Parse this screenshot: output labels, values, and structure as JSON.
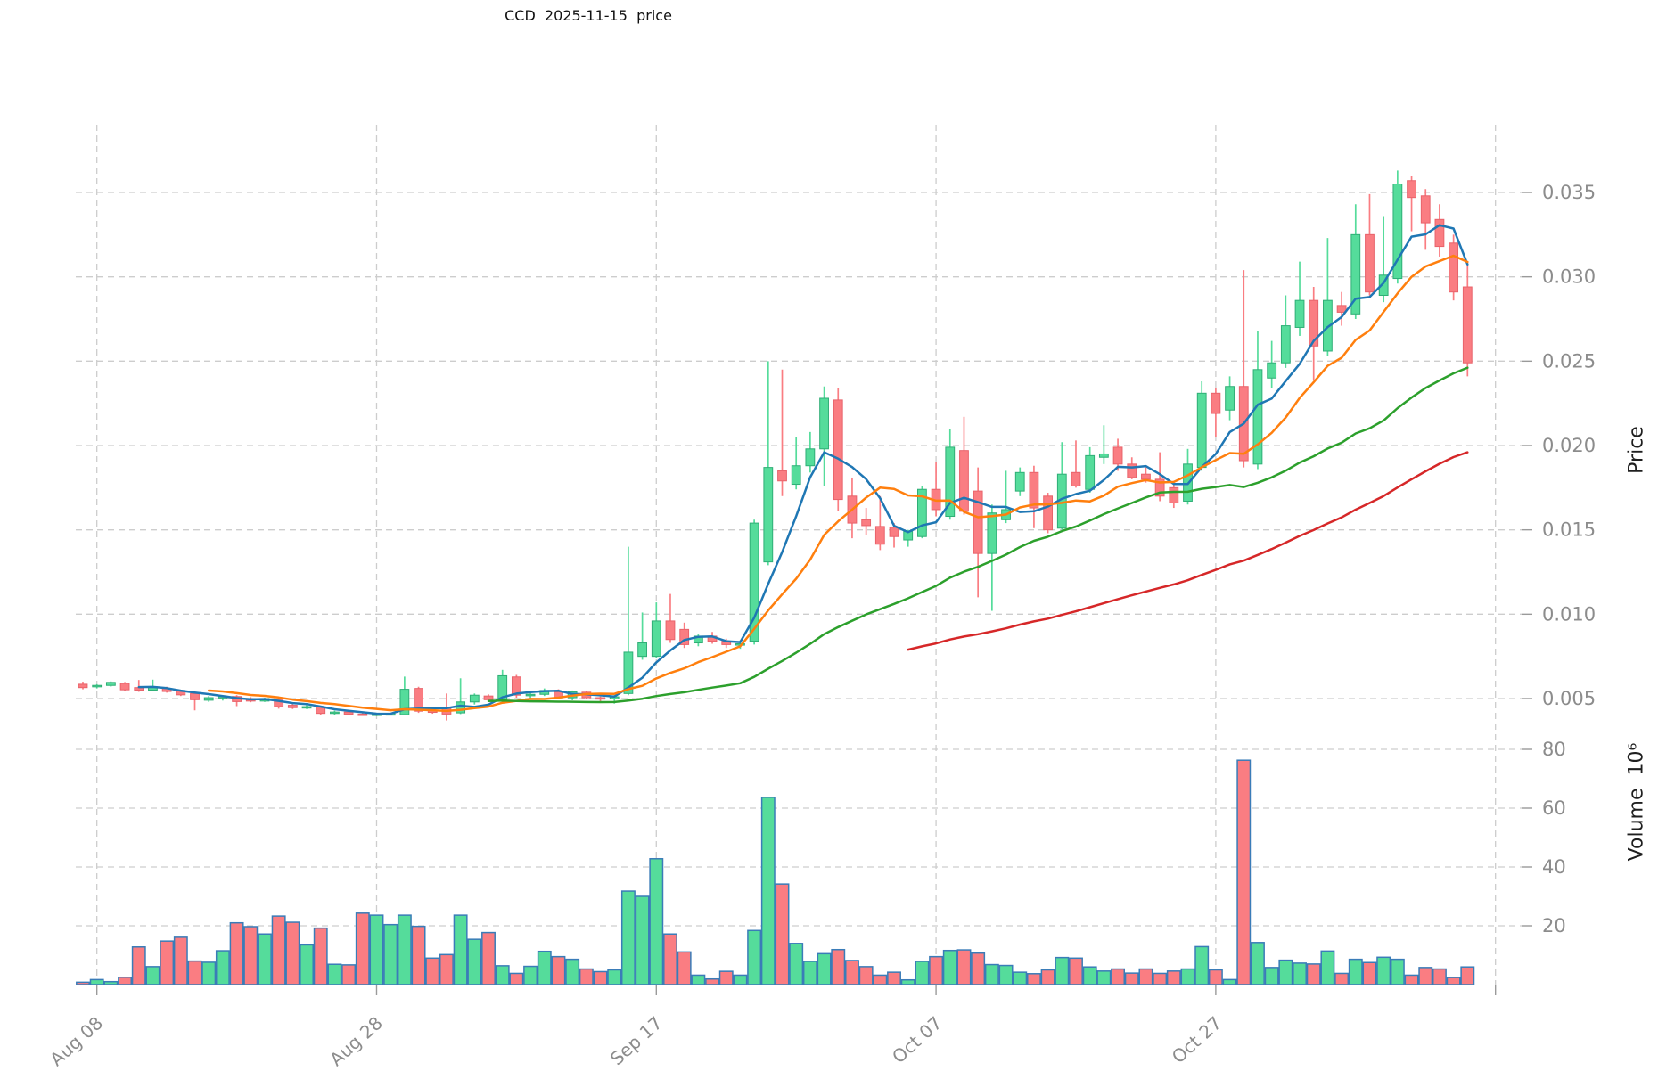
{
  "title": "CCD  2025-11-15  price",
  "price_axis": {
    "label": "Price",
    "tick_values": [
      0.005,
      0.01,
      0.015,
      0.02,
      0.025,
      0.03,
      0.035
    ],
    "tick_labels": [
      "0.005",
      "0.010",
      "0.015",
      "0.020",
      "0.025",
      "0.030",
      "0.035"
    ]
  },
  "volume_axis": {
    "label": "Volume  10⁶",
    "tick_values": [
      20,
      40,
      60,
      80
    ],
    "tick_labels": [
      "20",
      "40",
      "60",
      "80"
    ]
  },
  "x_axis": {
    "tick_labels": [
      "Aug 08",
      "Aug 28",
      "Sep 17",
      "Oct 07",
      "Oct 27"
    ],
    "tick_indices": [
      1,
      21,
      41,
      61,
      81
    ],
    "unlabeled_gridline_index": 101
  },
  "colors": {
    "up": "#55DC9B",
    "down": "#FA7D82",
    "up_edge": "#2fae76",
    "down_edge": "#e8636b",
    "volume_edge": "#3a7cb8",
    "grid": "#cdcdcd",
    "tick_text": "#8c8c8c",
    "sma5": "#1f77b4",
    "sma10": "#ff7f0e",
    "sma30": "#2ca02c",
    "sma60": "#d62728"
  },
  "chart_data": {
    "type": "candlestick",
    "title": "CCD  2025-11-15  price",
    "ylabel": "Price",
    "ylabel2": "Volume  10⁶",
    "price_range": [
      0.0035,
      0.039
    ],
    "volume_unit": "1e6",
    "moving_averages": [
      {
        "name": "SMA5",
        "window": 5,
        "color": "#1f77b4"
      },
      {
        "name": "SMA10",
        "window": 10,
        "color": "#ff7f0e"
      },
      {
        "name": "SMA30",
        "window": 30,
        "color": "#2ca02c"
      },
      {
        "name": "SMA60",
        "window": 60,
        "color": "#d62728"
      }
    ],
    "dates": [
      "2025-08-07",
      "2025-08-08",
      "2025-08-09",
      "2025-08-10",
      "2025-08-11",
      "2025-08-12",
      "2025-08-13",
      "2025-08-14",
      "2025-08-15",
      "2025-08-16",
      "2025-08-17",
      "2025-08-18",
      "2025-08-19",
      "2025-08-20",
      "2025-08-21",
      "2025-08-22",
      "2025-08-23",
      "2025-08-24",
      "2025-08-25",
      "2025-08-26",
      "2025-08-27",
      "2025-08-28",
      "2025-08-29",
      "2025-08-30",
      "2025-08-31",
      "2025-09-01",
      "2025-09-02",
      "2025-09-03",
      "2025-09-04",
      "2025-09-05",
      "2025-09-06",
      "2025-09-07",
      "2025-09-08",
      "2025-09-09",
      "2025-09-10",
      "2025-09-11",
      "2025-09-12",
      "2025-09-13",
      "2025-09-14",
      "2025-09-15",
      "2025-09-16",
      "2025-09-17",
      "2025-09-18",
      "2025-09-19",
      "2025-09-20",
      "2025-09-21",
      "2025-09-22",
      "2025-09-23",
      "2025-09-24",
      "2025-09-25",
      "2025-09-26",
      "2025-09-27",
      "2025-09-28",
      "2025-09-29",
      "2025-09-30",
      "2025-10-01",
      "2025-10-02",
      "2025-10-03",
      "2025-10-04",
      "2025-10-05",
      "2025-10-06",
      "2025-10-07",
      "2025-10-08",
      "2025-10-09",
      "2025-10-10",
      "2025-10-11",
      "2025-10-12",
      "2025-10-13",
      "2025-10-14",
      "2025-10-15",
      "2025-10-16",
      "2025-10-17",
      "2025-10-18",
      "2025-10-19",
      "2025-10-20",
      "2025-10-21",
      "2025-10-22",
      "2025-10-23",
      "2025-10-24",
      "2025-10-25",
      "2025-10-26",
      "2025-10-27",
      "2025-10-28",
      "2025-10-29",
      "2025-10-30",
      "2025-10-31",
      "2025-11-01",
      "2025-11-02",
      "2025-11-03",
      "2025-11-04",
      "2025-11-05",
      "2025-11-06",
      "2025-11-07",
      "2025-11-08",
      "2025-11-09",
      "2025-11-10",
      "2025-11-11",
      "2025-11-12",
      "2025-11-13",
      "2025-11-14"
    ],
    "open": [
      0.00585,
      0.0057,
      0.00578,
      0.0059,
      0.00565,
      0.0055,
      0.0056,
      0.00545,
      0.0053,
      0.0049,
      0.00505,
      0.00512,
      0.005,
      0.00485,
      0.00498,
      0.0046,
      0.00445,
      0.0045,
      0.00412,
      0.0042,
      0.00408,
      0.00403,
      0.00408,
      0.00405,
      0.0056,
      0.0043,
      0.00442,
      0.00415,
      0.0048,
      0.00515,
      0.00495,
      0.00628,
      0.0052,
      0.00525,
      0.0054,
      0.00505,
      0.00538,
      0.00505,
      0.00498,
      0.0053,
      0.0075,
      0.0075,
      0.0096,
      0.0091,
      0.0083,
      0.0087,
      0.0084,
      0.0082,
      0.0084,
      0.0131,
      0.0185,
      0.0177,
      0.0188,
      0.0198,
      0.0227,
      0.017,
      0.0156,
      0.0152,
      0.01515,
      0.0144,
      0.0146,
      0.0174,
      0.0158,
      0.0197,
      0.0173,
      0.0136,
      0.0156,
      0.0173,
      0.0184,
      0.017,
      0.0151,
      0.0184,
      0.0174,
      0.0193,
      0.0199,
      0.0189,
      0.0183,
      0.018,
      0.0175,
      0.0167,
      0.0187,
      0.0231,
      0.0221,
      0.0235,
      0.0189,
      0.024,
      0.0249,
      0.027,
      0.0286,
      0.0256,
      0.0283,
      0.0278,
      0.0325,
      0.0289,
      0.0299,
      0.0357,
      0.0348,
      0.0334,
      0.032,
      0.0294
    ],
    "high": [
      0.006,
      0.00585,
      0.00602,
      0.00598,
      0.0061,
      0.00612,
      0.0057,
      0.00552,
      0.00545,
      0.00515,
      0.0052,
      0.0052,
      0.00508,
      0.00505,
      0.00502,
      0.00468,
      0.0046,
      0.00455,
      0.00428,
      0.00428,
      0.00415,
      0.00412,
      0.00415,
      0.0063,
      0.0057,
      0.00445,
      0.0053,
      0.0062,
      0.0053,
      0.00525,
      0.0067,
      0.0064,
      0.00535,
      0.0056,
      0.00555,
      0.00548,
      0.00545,
      0.00512,
      0.0052,
      0.014,
      0.0101,
      0.0107,
      0.0112,
      0.0095,
      0.0088,
      0.00895,
      0.00855,
      0.00845,
      0.0156,
      0.025,
      0.0245,
      0.0205,
      0.0208,
      0.0235,
      0.0234,
      0.0181,
      0.0163,
      0.017,
      0.0154,
      0.015,
      0.0176,
      0.019,
      0.021,
      0.0217,
      0.0187,
      0.0165,
      0.0185,
      0.0187,
      0.0188,
      0.0172,
      0.0202,
      0.0203,
      0.0199,
      0.0212,
      0.0204,
      0.0193,
      0.0187,
      0.0196,
      0.0179,
      0.0198,
      0.0238,
      0.0234,
      0.0241,
      0.0304,
      0.0268,
      0.0262,
      0.0289,
      0.0309,
      0.0294,
      0.0323,
      0.0291,
      0.0343,
      0.0349,
      0.0336,
      0.0363,
      0.036,
      0.0352,
      0.0343,
      0.0325,
      0.0309
    ],
    "low": [
      0.00555,
      0.0056,
      0.0057,
      0.00545,
      0.0054,
      0.00543,
      0.00535,
      0.00515,
      0.0043,
      0.0048,
      0.00488,
      0.00455,
      0.00478,
      0.0048,
      0.0044,
      0.00438,
      0.00438,
      0.00405,
      0.00405,
      0.004,
      0.00398,
      0.00396,
      0.004,
      0.004,
      0.00415,
      0.0041,
      0.0037,
      0.00408,
      0.00465,
      0.00485,
      0.0049,
      0.00505,
      0.00498,
      0.00515,
      0.00495,
      0.0049,
      0.00498,
      0.00482,
      0.0047,
      0.0052,
      0.0073,
      0.0074,
      0.0083,
      0.008,
      0.0081,
      0.00825,
      0.008,
      0.00795,
      0.0082,
      0.0129,
      0.017,
      0.0174,
      0.0184,
      0.0176,
      0.0161,
      0.0145,
      0.0147,
      0.0138,
      0.01395,
      0.014,
      0.0145,
      0.0158,
      0.0156,
      0.0159,
      0.011,
      0.0102,
      0.0154,
      0.017,
      0.0151,
      0.0148,
      0.015,
      0.0175,
      0.0172,
      0.0189,
      0.0185,
      0.018,
      0.0178,
      0.0167,
      0.0163,
      0.0165,
      0.0185,
      0.0205,
      0.0215,
      0.0187,
      0.0186,
      0.0234,
      0.0246,
      0.0265,
      0.0239,
      0.0253,
      0.0271,
      0.0275,
      0.0289,
      0.0285,
      0.0296,
      0.0327,
      0.0316,
      0.0312,
      0.0286,
      0.0241
    ],
    "close": [
      0.00565,
      0.00578,
      0.00596,
      0.00552,
      0.0055,
      0.0057,
      0.00542,
      0.00522,
      0.00493,
      0.00505,
      0.00512,
      0.00482,
      0.00485,
      0.005,
      0.00452,
      0.00446,
      0.00452,
      0.00412,
      0.0042,
      0.00407,
      0.00403,
      0.00408,
      0.0041,
      0.00555,
      0.00425,
      0.00418,
      0.00408,
      0.0048,
      0.0052,
      0.00493,
      0.00635,
      0.0052,
      0.00525,
      0.00548,
      0.00505,
      0.0054,
      0.00505,
      0.00498,
      0.0051,
      0.00775,
      0.0083,
      0.0096,
      0.0085,
      0.0082,
      0.0087,
      0.0084,
      0.0082,
      0.00825,
      0.0154,
      0.0187,
      0.0179,
      0.0188,
      0.0198,
      0.0228,
      0.0168,
      0.0154,
      0.01525,
      0.01415,
      0.0146,
      0.0149,
      0.0174,
      0.0162,
      0.0199,
      0.0161,
      0.0136,
      0.016,
      0.0162,
      0.0184,
      0.0163,
      0.015,
      0.0183,
      0.0176,
      0.0194,
      0.0195,
      0.0189,
      0.0181,
      0.018,
      0.017,
      0.0166,
      0.0189,
      0.0231,
      0.0219,
      0.0235,
      0.0191,
      0.0245,
      0.0249,
      0.0271,
      0.0286,
      0.0259,
      0.0286,
      0.0279,
      0.0325,
      0.0291,
      0.0301,
      0.0355,
      0.0347,
      0.0332,
      0.0318,
      0.0291,
      0.0249
    ],
    "volume": [
      0.8,
      1.7,
      1.0,
      2.5,
      12.8,
      6.1,
      14.8,
      16.1,
      8.0,
      7.6,
      11.5,
      21.0,
      19.7,
      17.2,
      23.3,
      21.2,
      13.5,
      19.2,
      6.9,
      6.7,
      24.3,
      23.6,
      20.4,
      23.6,
      19.8,
      9.0,
      10.2,
      23.6,
      15.4,
      17.7,
      6.4,
      3.8,
      6.2,
      11.3,
      9.5,
      8.6,
      5.3,
      4.4,
      5.0,
      31.8,
      30.0,
      42.8,
      17.2,
      11.1,
      3.2,
      1.9,
      4.5,
      3.2,
      18.4,
      63.7,
      34.2,
      14.0,
      7.9,
      10.5,
      11.9,
      8.2,
      6.1,
      3.2,
      4.2,
      1.6,
      7.9,
      9.5,
      11.6,
      11.8,
      10.7,
      6.8,
      6.5,
      4.2,
      3.7,
      5.0,
      9.2,
      9.0,
      6.0,
      4.6,
      5.3,
      3.9,
      5.3,
      3.8,
      4.6,
      5.3,
      12.9,
      5.0,
      1.7,
      76.3,
      14.3,
      5.8,
      8.3,
      7.3,
      7.0,
      11.4,
      3.8,
      8.6,
      7.5,
      9.3,
      8.6,
      3.2,
      5.8,
      5.3,
      2.4,
      6.0
    ]
  }
}
